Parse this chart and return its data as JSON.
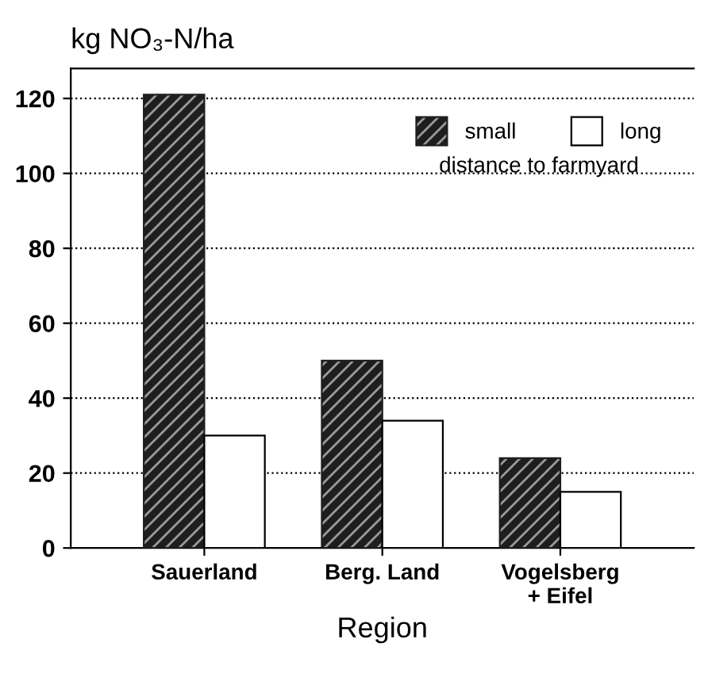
{
  "chart_data": {
    "type": "bar",
    "ylabel": "kg NO₃-N/ha",
    "xlabel": "Region",
    "categories": [
      "Sauerland",
      "Berg. Land",
      "Vogelsberg\n+ Eifel"
    ],
    "series": [
      {
        "name": "small",
        "color": "#1e1e1e",
        "values": [
          121,
          50,
          24
        ]
      },
      {
        "name": "long",
        "color": "#ffffff",
        "values": [
          30,
          34,
          15
        ]
      }
    ],
    "legend_title": "distance to farmyard",
    "legend": "top right",
    "ylim": [
      0,
      128
    ],
    "yticks": [
      0,
      20,
      40,
      60,
      80,
      100,
      120
    ],
    "grid": "y"
  }
}
